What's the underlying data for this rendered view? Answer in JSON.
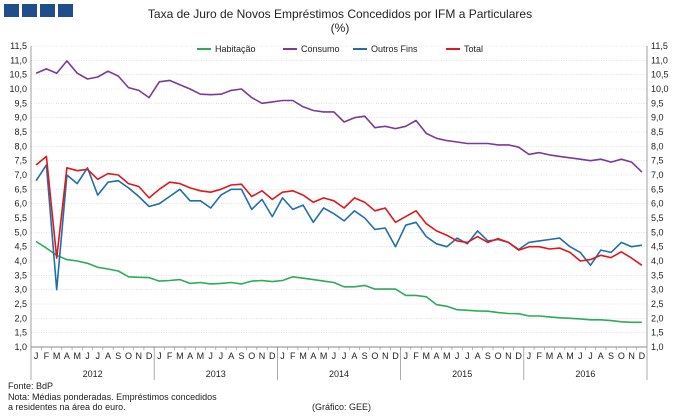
{
  "chart_data": {
    "type": "line",
    "title": "Taxa de Juro de Novos Empréstimos Concedidos por IFM a Particulares",
    "subtitle": "(%)",
    "ylim": [
      1.0,
      11.5
    ],
    "ytick_step": 0.5,
    "ytick_labels": [
      "1,0",
      "1,5",
      "2,0",
      "2,5",
      "3,0",
      "3,5",
      "4,0",
      "4,5",
      "5,0",
      "5,5",
      "6,0",
      "6,5",
      "7,0",
      "7,5",
      "8,0",
      "8,5",
      "9,0",
      "9,5",
      "10,0",
      "10,5",
      "11,0",
      "11,5"
    ],
    "month_labels": [
      "J",
      "F",
      "M",
      "A",
      "M",
      "J",
      "J",
      "A",
      "S",
      "O",
      "N",
      "D"
    ],
    "years": [
      "2012",
      "2013",
      "2014",
      "2015",
      "2016"
    ],
    "legend_position": "top-center",
    "series": [
      {
        "name": "Habitação",
        "color": "#2eab5a",
        "values": [
          4.68,
          4.45,
          4.2,
          4.05,
          4.0,
          3.92,
          3.78,
          3.72,
          3.65,
          3.45,
          3.43,
          3.42,
          3.3,
          3.32,
          3.35,
          3.22,
          3.25,
          3.2,
          3.22,
          3.25,
          3.2,
          3.3,
          3.32,
          3.28,
          3.32,
          3.45,
          3.4,
          3.35,
          3.3,
          3.25,
          3.1,
          3.1,
          3.15,
          3.02,
          3.02,
          3.02,
          2.8,
          2.8,
          2.75,
          2.48,
          2.42,
          2.3,
          2.28,
          2.26,
          2.25,
          2.2,
          2.17,
          2.16,
          2.08,
          2.08,
          2.05,
          2.02,
          2.0,
          1.98,
          1.95,
          1.95,
          1.92,
          1.88,
          1.86,
          1.86
        ]
      },
      {
        "name": "Consumo",
        "color": "#7a3a98",
        "values": [
          10.55,
          10.7,
          10.55,
          10.98,
          10.55,
          10.35,
          10.42,
          10.62,
          10.45,
          10.05,
          9.95,
          9.7,
          10.25,
          10.3,
          10.15,
          10.0,
          9.82,
          9.8,
          9.82,
          9.95,
          10.0,
          9.7,
          9.5,
          9.55,
          9.6,
          9.6,
          9.38,
          9.25,
          9.2,
          9.2,
          8.85,
          9.0,
          9.05,
          8.65,
          8.7,
          8.62,
          8.7,
          8.9,
          8.45,
          8.28,
          8.2,
          8.15,
          8.1,
          8.1,
          8.1,
          8.05,
          8.05,
          7.97,
          7.72,
          7.78,
          7.7,
          7.65,
          7.6,
          7.55,
          7.5,
          7.55,
          7.45,
          7.55,
          7.45,
          7.1
        ]
      },
      {
        "name": "Outros Fins",
        "color": "#1f6fad",
        "values": [
          6.8,
          7.35,
          3.0,
          7.0,
          6.7,
          7.25,
          6.3,
          6.75,
          6.8,
          6.55,
          6.25,
          5.9,
          6.0,
          6.25,
          6.5,
          6.1,
          6.1,
          5.85,
          6.3,
          6.5,
          6.5,
          5.8,
          6.15,
          5.55,
          6.2,
          5.8,
          5.95,
          5.35,
          5.85,
          5.65,
          5.4,
          5.75,
          5.5,
          5.1,
          5.15,
          4.5,
          5.25,
          5.35,
          4.85,
          4.6,
          4.5,
          4.8,
          4.6,
          5.05,
          4.7,
          4.75,
          4.65,
          4.4,
          4.65,
          4.7,
          4.75,
          4.8,
          4.5,
          4.3,
          3.85,
          4.38,
          4.3,
          4.65,
          4.5,
          4.55
        ]
      },
      {
        "name": "Total",
        "color": "#e0171c",
        "values": [
          7.35,
          7.65,
          4.1,
          7.25,
          7.15,
          7.2,
          6.85,
          7.05,
          7.0,
          6.7,
          6.6,
          6.2,
          6.5,
          6.75,
          6.7,
          6.55,
          6.45,
          6.4,
          6.5,
          6.65,
          6.68,
          6.25,
          6.45,
          6.15,
          6.4,
          6.45,
          6.3,
          6.05,
          6.2,
          6.1,
          5.85,
          6.2,
          6.05,
          5.75,
          5.85,
          5.35,
          5.55,
          5.75,
          5.3,
          5.05,
          4.9,
          4.7,
          4.65,
          4.85,
          4.65,
          4.78,
          4.65,
          4.38,
          4.5,
          4.5,
          4.42,
          4.45,
          4.3,
          4.0,
          4.05,
          4.2,
          4.12,
          4.32,
          4.1,
          3.85
        ]
      }
    ]
  },
  "footer": {
    "source": "Fonte: BdP",
    "note_line1": "Nota: Médias ponderadas.  Empréstimos concedidos",
    "note_line2": "a residentes na área do euro.",
    "credit": "(Gráfico:  GEE)"
  },
  "colors": {
    "logo": "#1f4e8c",
    "grid": "#cfcfcf",
    "axis": "#888888"
  }
}
